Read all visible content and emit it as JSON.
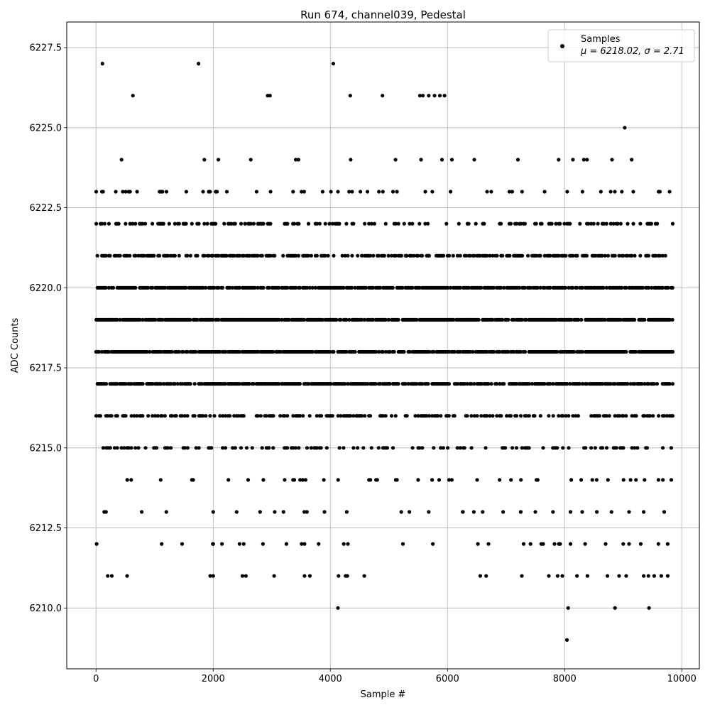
{
  "chart_data": {
    "type": "scatter",
    "title": "Run 674, channel039, Pedestal",
    "xlabel": "Sample #",
    "ylabel": "ADC Counts",
    "xlim": [
      -500,
      10300
    ],
    "ylim": [
      6208.1,
      6228.3
    ],
    "xticks": [
      0,
      2000,
      4000,
      6000,
      8000,
      10000
    ],
    "yticks": [
      6210.0,
      6212.5,
      6215.0,
      6217.5,
      6220.0,
      6222.5,
      6225.0,
      6227.5
    ],
    "grid": true,
    "marker_color": "#000000",
    "legend": {
      "placement": "top-right",
      "series_name": "Samples",
      "stats_text": "μ = 6218.02, σ = 2.71"
    },
    "stats": {
      "mean": 6218.02,
      "std": 2.71
    },
    "x_range": [
      0,
      9850
    ],
    "density_by_level": {
      "6209": 0,
      "6210": 0,
      "6211": 0.004,
      "6212": 0.012,
      "6213": 0.02,
      "6214": 0.1,
      "6215": 0.28,
      "6216": 0.5,
      "6217": 0.8,
      "6218": 0.88,
      "6219": 0.9,
      "6220": 0.82,
      "6221": 0.55,
      "6222": 0.33,
      "6223": 0.14,
      "6224": 0.03,
      "6225": 0.005,
      "6226": 0,
      "6227": 0
    },
    "sparse_points": [
      [
        110,
        6227
      ],
      [
        1750,
        6227
      ],
      [
        4050,
        6227
      ],
      [
        630,
        6226
      ],
      [
        2930,
        6226
      ],
      [
        2970,
        6226
      ],
      [
        4340,
        6226
      ],
      [
        4890,
        6226
      ],
      [
        5530,
        6226
      ],
      [
        5580,
        6226
      ],
      [
        5680,
        6226
      ],
      [
        5780,
        6226
      ],
      [
        5870,
        6226
      ],
      [
        5950,
        6226
      ],
      [
        140,
        6213
      ],
      [
        170,
        6213
      ],
      [
        780,
        6213
      ],
      [
        1200,
        6213
      ],
      [
        2000,
        6213
      ],
      [
        2400,
        6213
      ],
      [
        2800,
        6213
      ],
      [
        3200,
        6213
      ],
      [
        3600,
        6213
      ],
      [
        3900,
        6213
      ],
      [
        4280,
        6213
      ],
      [
        5350,
        6213
      ],
      [
        5680,
        6213
      ],
      [
        6260,
        6213
      ],
      [
        6450,
        6213
      ],
      [
        6600,
        6213
      ],
      [
        6950,
        6213
      ],
      [
        7250,
        6213
      ],
      [
        7500,
        6213
      ],
      [
        7800,
        6213
      ],
      [
        8100,
        6213
      ],
      [
        8300,
        6213
      ],
      [
        8550,
        6213
      ],
      [
        8800,
        6213
      ],
      [
        9100,
        6213
      ],
      [
        9350,
        6213
      ],
      [
        9700,
        6213
      ],
      [
        10,
        6212
      ],
      [
        1120,
        6212
      ],
      [
        1470,
        6212
      ],
      [
        2000,
        6212
      ],
      [
        2150,
        6212
      ],
      [
        2450,
        6212
      ],
      [
        2850,
        6212
      ],
      [
        3250,
        6212
      ],
      [
        3560,
        6212
      ],
      [
        3800,
        6212
      ],
      [
        4230,
        6212
      ],
      [
        4300,
        6212
      ],
      [
        5240,
        6212
      ],
      [
        5750,
        6212
      ],
      [
        6520,
        6212
      ],
      [
        6700,
        6212
      ],
      [
        7300,
        6212
      ],
      [
        7600,
        6212
      ],
      [
        7900,
        6212
      ],
      [
        8100,
        6212
      ],
      [
        8350,
        6212
      ],
      [
        8700,
        6212
      ],
      [
        9000,
        6212
      ],
      [
        9300,
        6212
      ],
      [
        9600,
        6212
      ],
      [
        9760,
        6212
      ],
      [
        200,
        6211
      ],
      [
        270,
        6211
      ],
      [
        530,
        6211
      ],
      [
        1950,
        6211
      ],
      [
        2000,
        6211
      ],
      [
        2500,
        6211
      ],
      [
        2560,
        6211
      ],
      [
        3040,
        6211
      ],
      [
        3560,
        6211
      ],
      [
        3650,
        6211
      ],
      [
        4140,
        6211
      ],
      [
        4260,
        6211
      ],
      [
        4290,
        6211
      ],
      [
        4580,
        6211
      ],
      [
        6560,
        6211
      ],
      [
        6660,
        6211
      ],
      [
        7270,
        6211
      ],
      [
        7730,
        6211
      ],
      [
        7880,
        6211
      ],
      [
        7960,
        6211
      ],
      [
        8210,
        6211
      ],
      [
        8390,
        6211
      ],
      [
        8730,
        6211
      ],
      [
        8930,
        6211
      ],
      [
        9050,
        6211
      ],
      [
        9350,
        6211
      ],
      [
        9430,
        6211
      ],
      [
        9760,
        6211
      ],
      [
        4130,
        6210
      ],
      [
        8060,
        6210
      ],
      [
        8860,
        6210
      ],
      [
        9440,
        6210
      ],
      [
        8040,
        6209
      ]
    ]
  }
}
